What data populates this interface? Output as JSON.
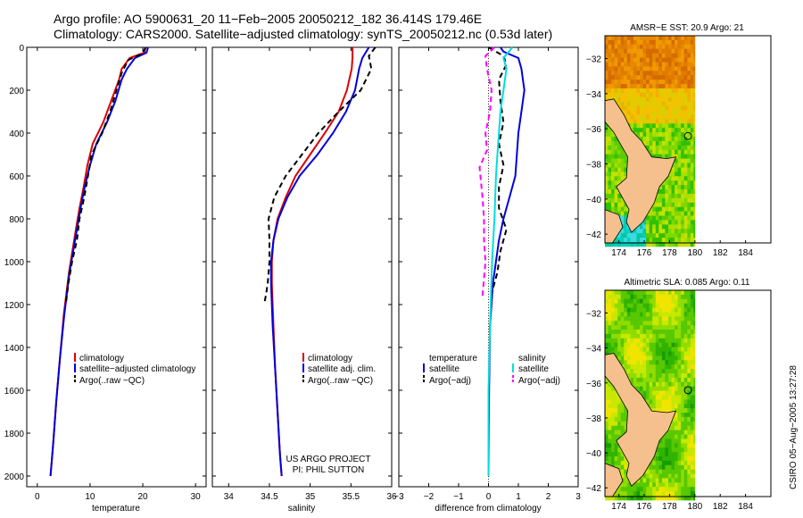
{
  "header": {
    "title_line1": "Argo profile: AO 5900631_20 11−Feb−2005 20050212_182 36.414S 179.46E",
    "title_line2": "Climatology: CARS2000. Satellite−adjusted climatology: synTS_20050212.nc (0.53d later)"
  },
  "credit": "CSIRO 05−Aug−2005 13:27:28",
  "project": {
    "line1": "US ARGO PROJECT",
    "line2": "PI: PHIL SUTTON"
  },
  "colors": {
    "climatology": "#dd0000",
    "satellite": "#0000dd",
    "argo": "#000000",
    "salinity_sat": "#00dddd",
    "salinity_argo": "#ff00ff",
    "land": "#f5c08e"
  },
  "chart_data": [
    {
      "type": "line",
      "xlabel": "temperature",
      "ylabel": "",
      "xlim": [
        -2,
        32
      ],
      "ylim": [
        2050,
        0
      ],
      "xticks": [
        0,
        10,
        20,
        30
      ],
      "yticks": [
        0,
        200,
        400,
        600,
        800,
        1000,
        1200,
        1400,
        1600,
        1800,
        2000
      ],
      "legend": {
        "position": "lower-right",
        "entries": [
          "climatology",
          "satellite−adjusted climatology",
          "Argo(..raw −QC)"
        ]
      },
      "series": [
        {
          "name": "climatology",
          "style": "solid",
          "color": "#dd0000",
          "x": [
            20.5,
            20.3,
            17.5,
            16.0,
            15.5,
            14.0,
            12.5,
            10.5,
            9.5,
            8.8,
            8.0,
            7.3,
            6.0,
            5.0,
            4.3,
            3.6,
            3.0,
            2.5
          ],
          "y": [
            0,
            25,
            50,
            100,
            150,
            250,
            350,
            450,
            550,
            650,
            750,
            850,
            1050,
            1250,
            1450,
            1650,
            1850,
            2000
          ]
        },
        {
          "name": "satellite−adjusted climatology",
          "style": "solid",
          "color": "#0000dd",
          "x": [
            21.0,
            20.7,
            18.5,
            17.0,
            16.0,
            14.8,
            13.2,
            11.2,
            10.0,
            9.0,
            8.2,
            7.5,
            6.1,
            5.1,
            4.3,
            3.6,
            3.0,
            2.5
          ],
          "y": [
            0,
            25,
            50,
            100,
            150,
            250,
            350,
            450,
            550,
            650,
            750,
            850,
            1050,
            1250,
            1450,
            1650,
            1850,
            2000
          ]
        },
        {
          "name": "Argo(..raw −QC)",
          "style": "dashed",
          "color": "#000000",
          "x": [
            20.6,
            19.8,
            17.2,
            16.0,
            15.0,
            13.8,
            12.3,
            10.3,
            9.6,
            8.9,
            8.0,
            7.5,
            6.6,
            5.9,
            5.4
          ],
          "y": [
            0,
            30,
            60,
            120,
            200,
            300,
            400,
            500,
            600,
            700,
            800,
            900,
            1000,
            1100,
            1200
          ]
        }
      ]
    },
    {
      "type": "line",
      "xlabel": "salinity",
      "ylabel": "",
      "xlim": [
        33.8,
        36.0
      ],
      "ylim": [
        2050,
        0
      ],
      "xticks": [
        34,
        34.5,
        35,
        35.5,
        36
      ],
      "yticks": [
        0,
        200,
        400,
        600,
        800,
        1000,
        1200,
        1400,
        1600,
        1800,
        2000
      ],
      "legend": {
        "position": "lower-right",
        "entries": [
          "climatology",
          "satellite adj. clim.",
          "Argo(..raw −QC)"
        ]
      },
      "series": [
        {
          "name": "climatology",
          "style": "solid",
          "color": "#dd0000",
          "x": [
            35.52,
            35.52,
            35.51,
            35.45,
            35.35,
            35.18,
            35.0,
            34.82,
            34.7,
            34.6,
            34.55,
            34.53,
            34.53,
            34.55,
            34.57,
            34.6,
            34.63,
            34.65
          ],
          "y": [
            0,
            50,
            100,
            200,
            300,
            400,
            500,
            600,
            700,
            800,
            900,
            1000,
            1100,
            1300,
            1500,
            1700,
            1900,
            2000
          ]
        },
        {
          "name": "satellite adj. clim.",
          "style": "solid",
          "color": "#0000dd",
          "x": [
            35.72,
            35.64,
            35.6,
            35.55,
            35.44,
            35.28,
            35.09,
            34.87,
            34.72,
            34.61,
            34.55,
            34.52,
            34.52,
            34.54,
            34.57,
            34.6,
            34.63,
            34.65
          ],
          "y": [
            0,
            50,
            100,
            200,
            300,
            400,
            500,
            600,
            700,
            800,
            900,
            1000,
            1100,
            1300,
            1500,
            1700,
            1900,
            2000
          ]
        },
        {
          "name": "Argo(..raw −QC)",
          "style": "dashed",
          "color": "#000000",
          "x": [
            35.8,
            35.72,
            35.75,
            35.62,
            35.35,
            35.1,
            34.9,
            34.7,
            34.56,
            34.49,
            34.5,
            34.5,
            34.48,
            34.46,
            34.44
          ],
          "y": [
            0,
            40,
            100,
            200,
            300,
            400,
            500,
            600,
            700,
            800,
            900,
            1000,
            1100,
            1150,
            1190
          ]
        }
      ]
    },
    {
      "type": "line",
      "xlabel": "difference from climatology",
      "ylabel": "",
      "xlim": [
        -3,
        3
      ],
      "ylim": [
        2050,
        0
      ],
      "xticks": [
        -3,
        -2,
        -1,
        0,
        1,
        2,
        3
      ],
      "yticks": [
        0,
        200,
        400,
        600,
        800,
        1000,
        1200,
        1400,
        1600,
        1800,
        2000
      ],
      "legend": {
        "position": "lower-right",
        "columns": [
          [
            "temperature",
            "satellite",
            "Argo(−adj)"
          ],
          [
            "salinity",
            "satellite",
            "Argo(−adj)"
          ]
        ]
      },
      "series": [
        {
          "name": "temperature satellite",
          "style": "solid",
          "color": "#0000dd",
          "x": [
            0.4,
            0.5,
            1.0,
            1.1,
            1.2,
            1.1,
            1.0,
            0.95,
            0.9,
            0.7,
            0.5,
            0.35,
            0.15,
            0.05,
            0.02,
            0.0
          ],
          "y": [
            0,
            20,
            50,
            100,
            200,
            300,
            400,
            500,
            600,
            700,
            800,
            900,
            1100,
            1300,
            1600,
            2000
          ]
        },
        {
          "name": "temperature Argo(−adj)",
          "style": "dashed",
          "color": "#000000",
          "x": [
            0.0,
            0.5,
            0.6,
            0.35,
            0.4,
            0.5,
            0.35,
            0.5,
            0.35,
            0.35,
            0.6,
            0.4,
            0.3,
            0.1
          ],
          "y": [
            0,
            40,
            80,
            150,
            250,
            350,
            450,
            550,
            650,
            750,
            850,
            950,
            1050,
            1150
          ]
        },
        {
          "name": "salinity satellite",
          "style": "solid",
          "color": "#00dddd",
          "x": [
            0.8,
            0.5,
            0.6,
            0.5,
            0.4,
            0.35,
            0.3,
            0.25,
            0.2,
            0.12,
            0.05,
            0.0,
            0.0
          ],
          "y": [
            0,
            50,
            100,
            200,
            300,
            400,
            500,
            600,
            800,
            1000,
            1300,
            1600,
            2000
          ]
        },
        {
          "name": "salinity Argo(−adj)",
          "style": "dashed",
          "color": "#ff00ff",
          "x": [
            0.2,
            -0.1,
            -0.05,
            0.1,
            0.05,
            -0.1,
            -0.05,
            -0.3,
            -0.2,
            -0.15,
            -0.15,
            -0.1,
            -0.2
          ],
          "y": [
            0,
            40,
            100,
            200,
            300,
            400,
            480,
            560,
            700,
            800,
            900,
            1000,
            1160
          ]
        }
      ]
    },
    {
      "type": "heatmap",
      "title": "AMSR−E SST: 20.9 Argo: 21",
      "xlim": [
        172.9,
        186
      ],
      "ylim": [
        -42.5,
        -30.7
      ],
      "xticks": [
        174,
        176,
        178,
        180,
        182,
        184
      ],
      "yticks": [
        -32,
        -34,
        -36,
        -38,
        -40,
        -42
      ],
      "marker": {
        "lon": 179.46,
        "lat": -36.414
      }
    },
    {
      "type": "heatmap",
      "title": "Altimetric SLA: 0.085 Argo: 0.11",
      "xlim": [
        172.9,
        186
      ],
      "ylim": [
        -42.5,
        -30.7
      ],
      "xticks": [
        174,
        176,
        178,
        180,
        182,
        184
      ],
      "yticks": [
        -32,
        -34,
        -36,
        -38,
        -40,
        -42
      ],
      "marker": {
        "lon": 179.46,
        "lat": -36.414
      }
    }
  ]
}
